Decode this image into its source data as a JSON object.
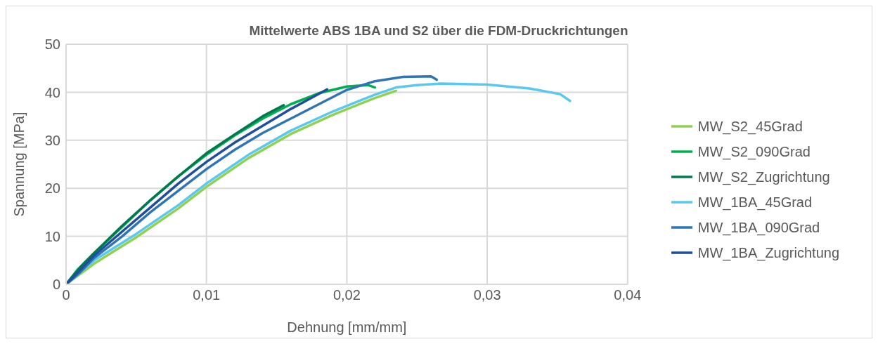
{
  "chart_data": {
    "type": "line",
    "title": "Mittelwerte ABS 1BA und S2 über die FDM-Druckrichtungen",
    "xlabel": "Dehnung [mm/mm]",
    "ylabel": "Spannung [MPa]",
    "xlim": [
      0,
      0.04
    ],
    "xticks": [
      {
        "value": 0,
        "label": "0"
      },
      {
        "value": 0.01,
        "label": "0,01"
      },
      {
        "value": 0.02,
        "label": "0,02"
      },
      {
        "value": 0.03,
        "label": "0,03"
      },
      {
        "value": 0.04,
        "label": "0,04"
      }
    ],
    "ylim": [
      0,
      50
    ],
    "yticks": [
      0,
      10,
      20,
      30,
      40,
      50
    ],
    "grid": true,
    "legend": "right",
    "marker": "none",
    "line_style": "solid",
    "series": [
      {
        "name": "MW_S2_45Grad",
        "color": "#92d050",
        "x": [
          0,
          0.002,
          0.005,
          0.008,
          0.01,
          0.013,
          0.016,
          0.019,
          0.022,
          0.0235
        ],
        "values": [
          0,
          4.3,
          9.8,
          15.8,
          20.3,
          26.3,
          31.3,
          35.3,
          38.8,
          40.3
        ]
      },
      {
        "name": "MW_S2_090Grad",
        "color": "#00b050",
        "x": [
          0,
          0.0008,
          0.002,
          0.004,
          0.006,
          0.008,
          0.01,
          0.012,
          0.014,
          0.016,
          0.018,
          0.02,
          0.0215,
          0.022
        ],
        "values": [
          0,
          3,
          6.5,
          12,
          17.5,
          22.5,
          27,
          31,
          34.5,
          37.5,
          39.8,
          41.2,
          41.5,
          41
        ]
      },
      {
        "name": "MW_S2_Zugrichtung",
        "color": "#007a4d",
        "x": [
          0,
          0.001,
          0.002,
          0.004,
          0.006,
          0.008,
          0.01,
          0.012,
          0.014,
          0.0155
        ],
        "values": [
          0,
          3.5,
          6.5,
          12.2,
          17.5,
          22.5,
          27.3,
          31.2,
          35,
          37.3
        ]
      },
      {
        "name": "MW_1BA_45Grad",
        "color": "#5bc8f0",
        "x": [
          0,
          0.002,
          0.005,
          0.008,
          0.01,
          0.013,
          0.016,
          0.019,
          0.022,
          0.0235,
          0.025,
          0.0267,
          0.03,
          0.033,
          0.0352,
          0.0359
        ],
        "values": [
          0,
          5,
          10.5,
          16.5,
          21,
          27,
          32,
          36,
          39.5,
          41,
          41.5,
          41.8,
          41.6,
          40.8,
          39.6,
          38.2
        ]
      },
      {
        "name": "MW_1BA_090Grad",
        "color": "#2e75b6",
        "x": [
          0,
          0.001,
          0.002,
          0.004,
          0.006,
          0.008,
          0.01,
          0.012,
          0.014,
          0.016,
          0.018,
          0.02,
          0.022,
          0.024,
          0.026,
          0.0264
        ],
        "values": [
          0,
          2.5,
          5.5,
          10,
          15,
          19.5,
          24,
          28,
          31.5,
          34.5,
          37.5,
          40.5,
          42.3,
          43.2,
          43.3,
          42.6
        ]
      },
      {
        "name": "MW_1BA_Zugrichtung",
        "color": "#1f4e9c",
        "x": [
          0,
          0.001,
          0.002,
          0.004,
          0.006,
          0.008,
          0.01,
          0.012,
          0.014,
          0.016,
          0.0186
        ],
        "values": [
          0,
          3,
          6,
          11,
          16,
          21,
          25.5,
          29.5,
          33,
          36.5,
          40.6
        ]
      }
    ]
  }
}
